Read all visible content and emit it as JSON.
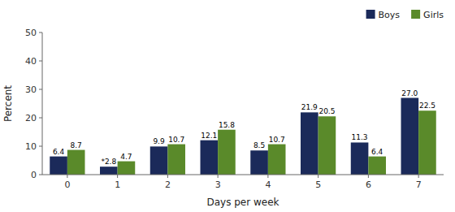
{
  "chart_data": {
    "type": "bar",
    "x_label": "Days per week",
    "y_label": "Percent",
    "categories": [
      0,
      1,
      2,
      3,
      4,
      5,
      6,
      7
    ],
    "series": [
      {
        "name": "Boys",
        "color": "#1B2A5A",
        "values": [
          6.4,
          2.8,
          9.9,
          12.1,
          8.5,
          21.9,
          11.3,
          27.0
        ],
        "value_labels": [
          "6.4",
          "*2.8",
          "9.9",
          "12.1",
          "8.5",
          "21.9",
          "11.3",
          "27.0"
        ]
      },
      {
        "name": "Girls",
        "color": "#5A8A2A",
        "values": [
          8.7,
          4.7,
          10.7,
          15.8,
          10.7,
          20.5,
          6.4,
          22.5
        ],
        "value_labels": [
          "8.7",
          "4.7",
          "10.7",
          "15.8",
          "10.7",
          "20.5",
          "6.4",
          "22.5"
        ]
      }
    ],
    "ylim": [
      0,
      50
    ],
    "yticks": [
      0,
      10,
      20,
      30,
      40,
      50
    ],
    "grid": false,
    "legend": "upper right",
    "data_labels": true
  }
}
